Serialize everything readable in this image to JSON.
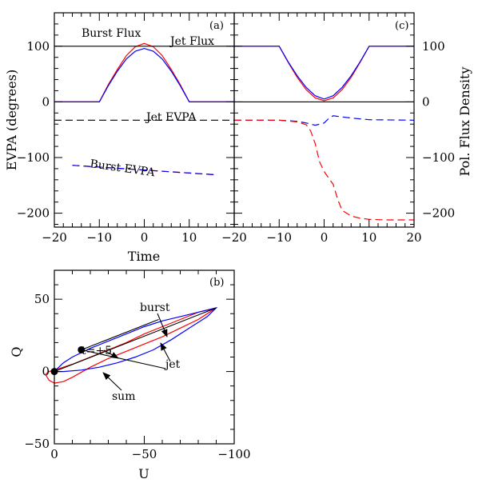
{
  "colors": {
    "red": "#ff0000",
    "blue": "#0000ff",
    "black": "#000000"
  },
  "chart_data": [
    {
      "id": "a",
      "panel_label": "(a)",
      "type": "line",
      "xlabel": "Time",
      "ylabel": "EVPA  (degrees)",
      "xlim": [
        -20,
        20
      ],
      "ylim": [
        -225,
        160
      ],
      "x_ticks": [
        -20,
        -10,
        0,
        10
      ],
      "y_ticks": [
        -200,
        -100,
        0,
        100
      ],
      "annotations": [
        {
          "text": "Burst Flux",
          "x": -8,
          "y": 125
        },
        {
          "text": "Jet Flux",
          "x": 7,
          "y": 104
        },
        {
          "text": "Jet EVPA",
          "x": 3.5,
          "y": -26
        },
        {
          "text": "Burst EVPA",
          "x": -6,
          "y": -105
        }
      ],
      "series": [
        {
          "color": "red",
          "dash": false,
          "x": [
            -20,
            -10,
            -8,
            -6,
            -4,
            -2,
            0,
            2,
            4,
            6,
            8,
            10,
            20
          ],
          "y": [
            0,
            0,
            31,
            58,
            83,
            99,
            105,
            99,
            83,
            58,
            31,
            0,
            0
          ]
        },
        {
          "color": "blue",
          "dash": false,
          "x": [
            -20,
            -10,
            -8,
            -6,
            -4,
            -2,
            0,
            2,
            4,
            6,
            8,
            10,
            20
          ],
          "y": [
            0,
            0,
            29,
            55,
            77,
            91,
            96,
            91,
            77,
            55,
            29,
            0,
            0
          ]
        },
        {
          "color": "black",
          "dash": false,
          "x": [
            -20,
            20
          ],
          "y": [
            100,
            100
          ]
        },
        {
          "color": "black",
          "dash": true,
          "x": [
            -20,
            20
          ],
          "y": [
            -33,
            -33
          ]
        },
        {
          "color": "red",
          "dash": true,
          "x": [
            -16,
            16
          ],
          "y": [
            -114,
            -131
          ]
        },
        {
          "color": "blue",
          "dash": true,
          "x": [
            -16,
            16
          ],
          "y": [
            -114,
            -131
          ]
        }
      ]
    },
    {
      "id": "c",
      "panel_label": "(c)",
      "type": "line",
      "xlabel": "",
      "ylabel": "Pol. Flux Density",
      "xlim": [
        -20,
        20
      ],
      "ylim": [
        -225,
        160
      ],
      "x_ticks": [
        -20,
        -10,
        0,
        10,
        20
      ],
      "y_ticks": [
        -200,
        -100,
        0,
        100
      ],
      "series": [
        {
          "color": "red",
          "dash": false,
          "x": [
            -20,
            -10,
            -8,
            -6,
            -4,
            -2,
            0,
            2,
            4,
            6,
            8,
            10,
            20
          ],
          "y": [
            100,
            100,
            71,
            44,
            22,
            7,
            2,
            7,
            22,
            44,
            71,
            100,
            100
          ]
        },
        {
          "color": "blue",
          "dash": false,
          "x": [
            -20,
            -10,
            -8,
            -6,
            -4,
            -2,
            0,
            2,
            4,
            6,
            8,
            10,
            20
          ],
          "y": [
            100,
            100,
            72,
            47,
            26,
            11,
            5,
            11,
            26,
            47,
            72,
            100,
            100
          ]
        },
        {
          "color": "black",
          "dash": false,
          "x": [
            -20,
            20
          ],
          "y": [
            0,
            0
          ]
        },
        {
          "color": "blue",
          "dash": true,
          "x": [
            -20,
            -10,
            -6,
            -4,
            -2,
            0,
            1,
            2,
            4,
            6,
            10,
            20
          ],
          "y": [
            -33,
            -33,
            -35,
            -38,
            -42,
            -38,
            -30,
            -25,
            -27,
            -29,
            -32,
            -33
          ]
        },
        {
          "color": "red",
          "dash": true,
          "x": [
            -20,
            -10,
            -6,
            -4,
            -3,
            -2,
            -1,
            0,
            1,
            2,
            3,
            4,
            6,
            8,
            10,
            14,
            20
          ],
          "y": [
            -33,
            -33,
            -36,
            -41,
            -52,
            -75,
            -108,
            -125,
            -137,
            -148,
            -175,
            -195,
            -205,
            -209,
            -211,
            -212,
            -212
          ]
        }
      ]
    },
    {
      "id": "b",
      "panel_label": "(b)",
      "type": "line",
      "xlabel": "U",
      "ylabel": "Q",
      "xlim": [
        0,
        -100
      ],
      "ylim": [
        -50,
        70
      ],
      "x_ticks": [
        0,
        -50,
        -100
      ],
      "y_ticks": [
        -50,
        0,
        50
      ],
      "points": [
        {
          "label": "",
          "x": 0,
          "y": 0
        },
        {
          "label": "t=+5",
          "x": -15,
          "y": 15
        }
      ],
      "annotations": [
        {
          "text": "burst",
          "x": -50,
          "y": 37
        },
        {
          "text": "jet",
          "x": -65,
          "y": 10
        },
        {
          "text": "t=+5",
          "x": 4,
          "y": 23
        },
        {
          "text": "sum",
          "x": -10,
          "y": -21
        }
      ],
      "series": [
        {
          "color": "red",
          "dash": false,
          "x": [
            5,
            3,
            0,
            -5,
            -10,
            -20,
            -30,
            -40,
            -50,
            -60,
            -70,
            -80,
            -90,
            -80,
            -70,
            -60,
            -50,
            -40,
            -30,
            -20,
            -10,
            -5,
            0,
            3,
            5
          ],
          "y": [
            -2,
            -6,
            -8,
            -7,
            -4,
            3,
            9,
            14,
            19,
            24,
            30,
            36,
            44,
            41,
            36,
            31,
            26,
            20,
            15,
            10,
            5,
            3,
            1,
            0,
            -2
          ]
        },
        {
          "color": "blue",
          "dash": false,
          "x": [
            0,
            -5,
            -10,
            -20,
            -30,
            -40,
            -50,
            -60,
            -70,
            -80,
            -90,
            -85,
            -75,
            -65,
            -55,
            -45,
            -35,
            -25,
            -15,
            -5,
            0
          ],
          "y": [
            0,
            6,
            10,
            16,
            21,
            26,
            31,
            35,
            38,
            41,
            44,
            38,
            30,
            22,
            15,
            10,
            6,
            3,
            1,
            0,
            0
          ]
        },
        {
          "color": "black",
          "dash": false,
          "x": [
            0,
            -90
          ],
          "y": [
            0,
            44
          ]
        },
        {
          "color": "black",
          "dash": false,
          "x": [
            -15,
            -58
          ],
          "y": [
            15,
            36
          ]
        },
        {
          "color": "black",
          "dash": false,
          "x": [
            -15,
            -62
          ],
          "y": [
            15,
            2
          ]
        }
      ]
    }
  ]
}
